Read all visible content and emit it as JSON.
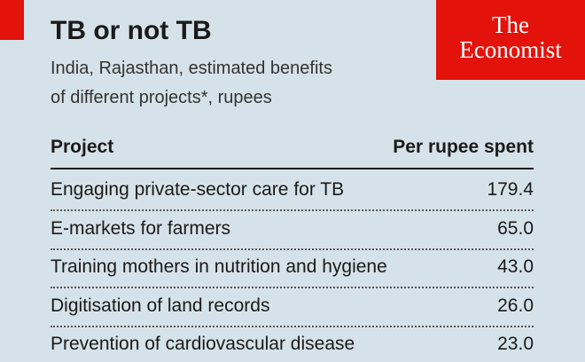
{
  "header": {
    "title": "TB or not TB",
    "subtitle_lines": [
      "India, Rajasthan, estimated benefits",
      "of different projects*, rupees"
    ],
    "logo": [
      "The",
      "Economist"
    ]
  },
  "table": {
    "columns": [
      "Project",
      "Per rupee spent"
    ],
    "rows": [
      [
        "Engaging private-sector care for TB",
        "179.4"
      ],
      [
        "E-markets for farmers",
        "65.0"
      ],
      [
        "Training mothers in nutrition and hygiene",
        "43.0"
      ],
      [
        "Digitisation of land records",
        "26.0"
      ],
      [
        "Prevention of cardiovascular disease",
        "23.0"
      ]
    ]
  }
}
